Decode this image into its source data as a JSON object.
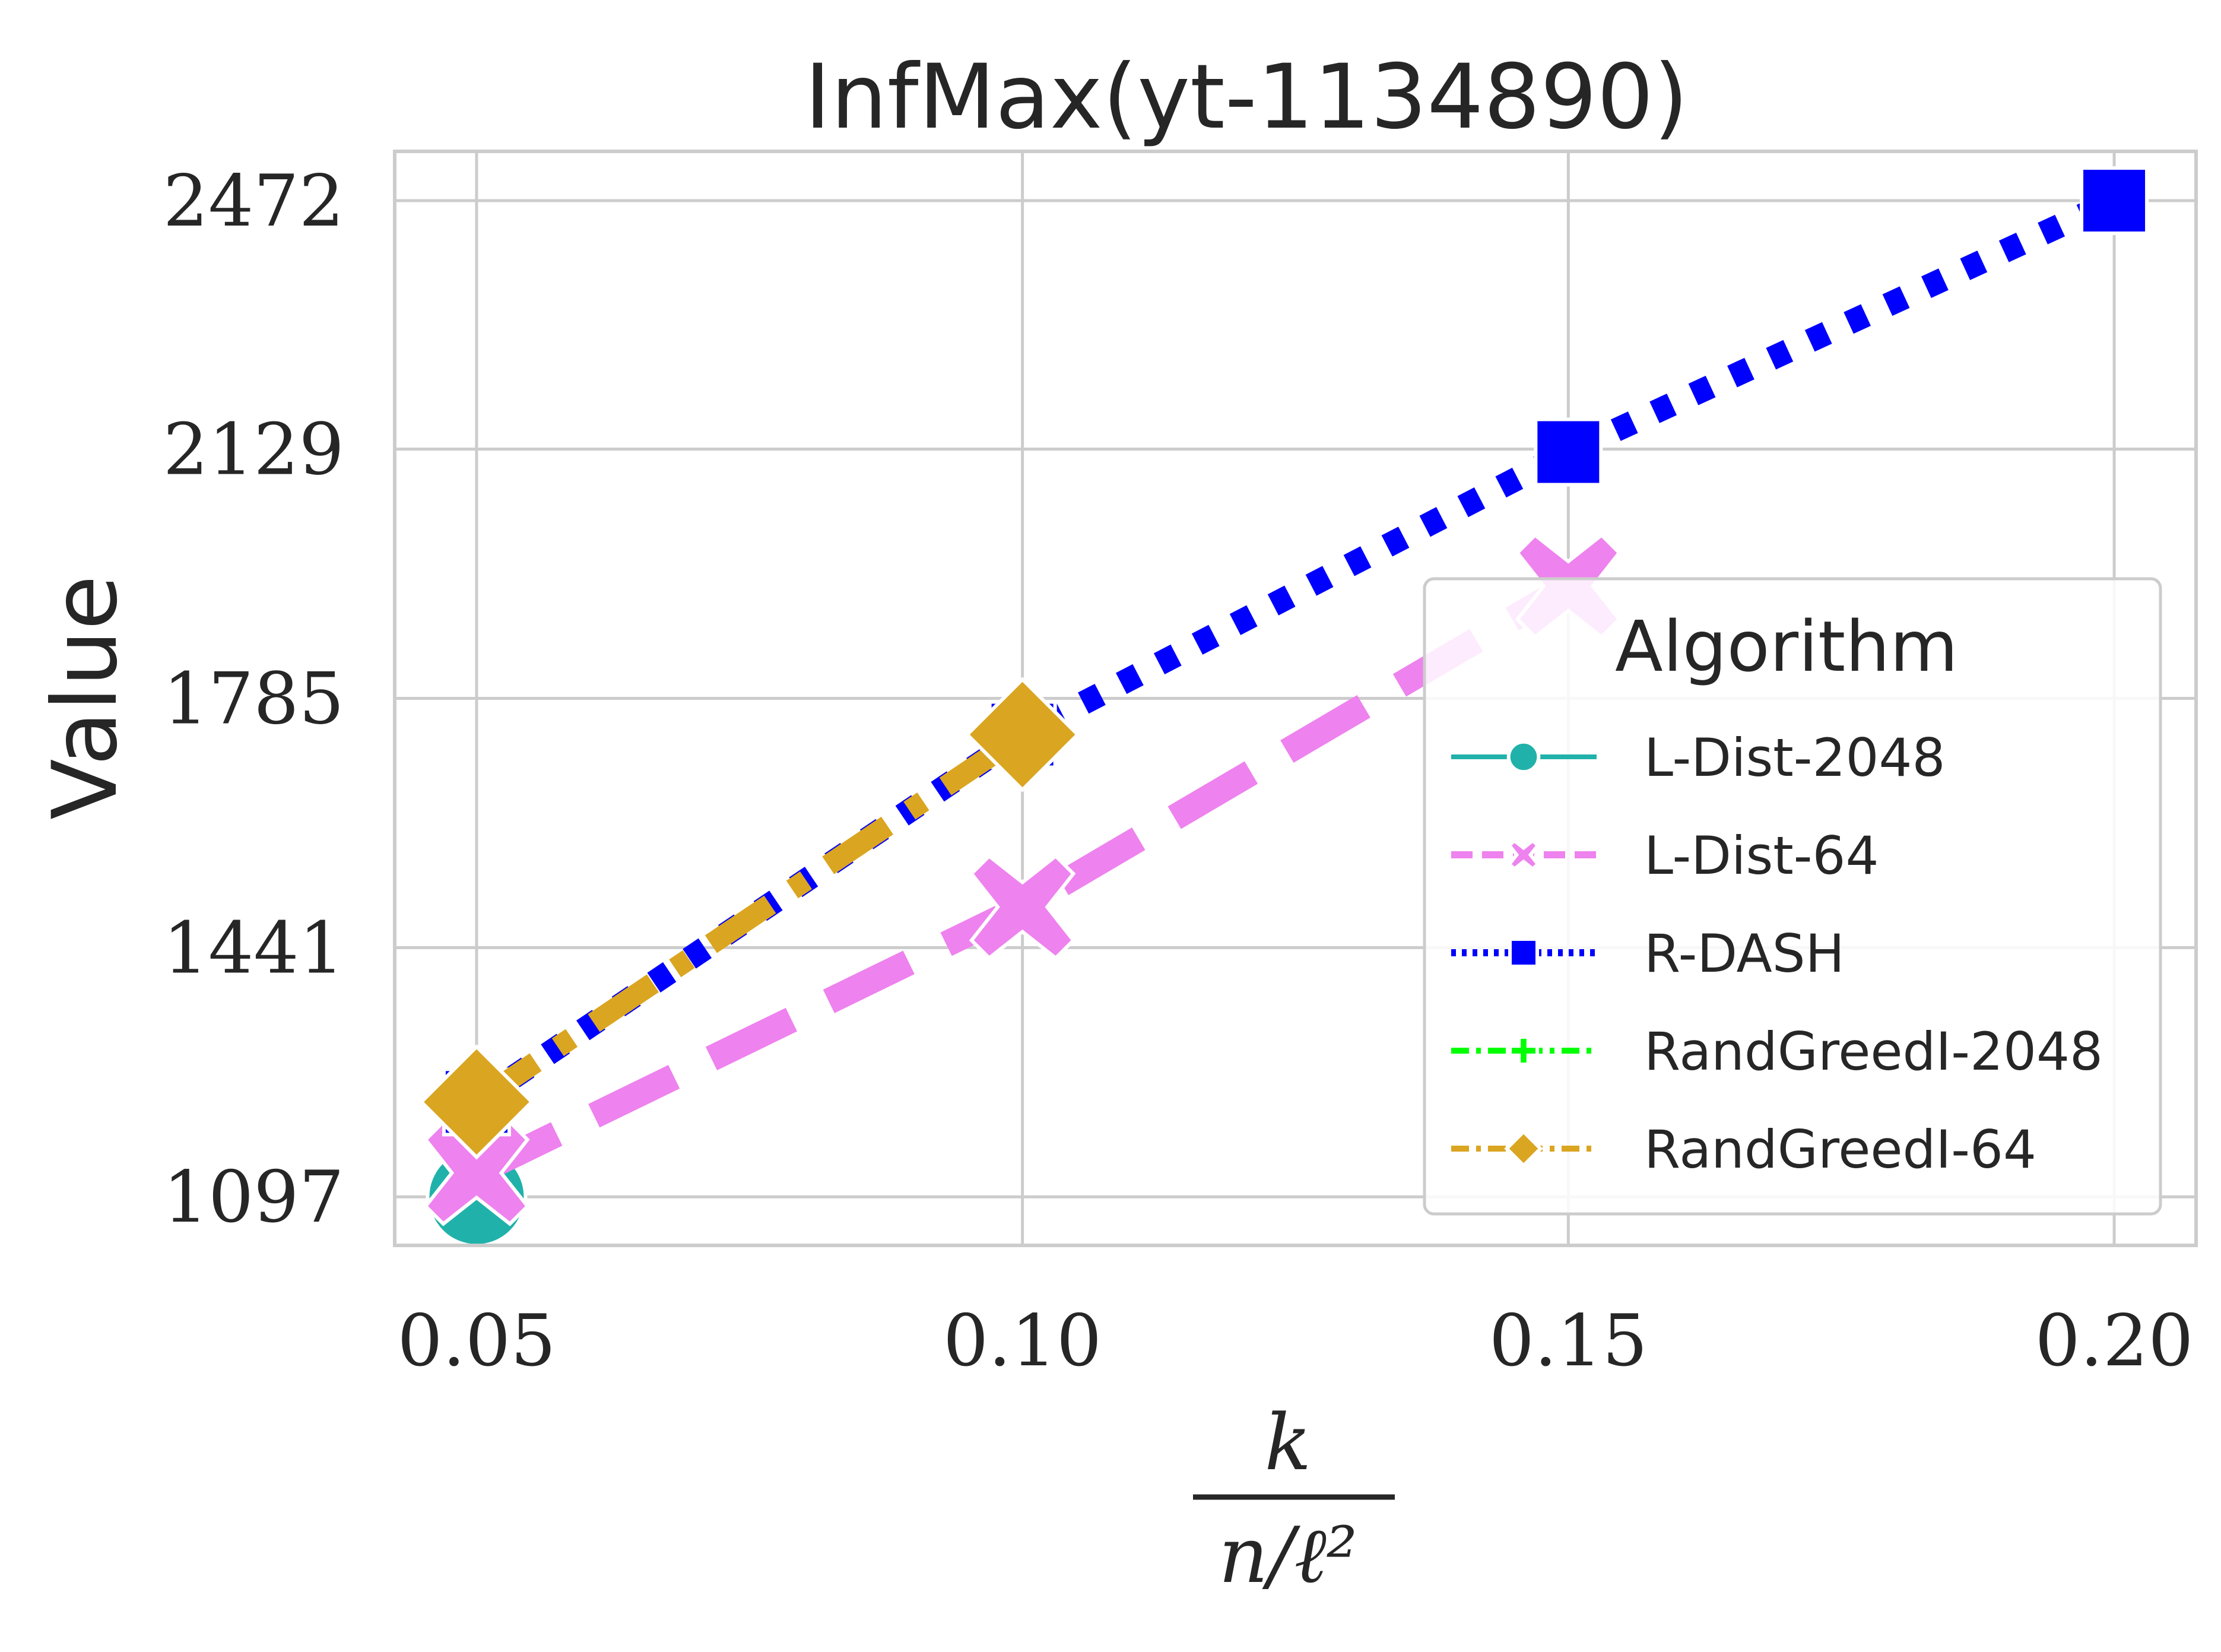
{
  "chart_data": {
    "type": "line",
    "title": "InfMax(yt-1134890)",
    "ylabel": "Value",
    "xlabel": {
      "numerator": "k",
      "denominator": "n/ℓ²"
    },
    "xlim": [
      0.0425,
      0.2075
    ],
    "ylim": [
      1030,
      2540
    ],
    "x_ticks": [
      0.05,
      0.1,
      0.15,
      0.2
    ],
    "x_tick_labels": [
      "0.05",
      "0.10",
      "0.15",
      "0.20"
    ],
    "y_ticks": [
      1097,
      1441,
      1785,
      2129,
      2472
    ],
    "y_tick_labels": [
      "1097",
      "1441",
      "1785",
      "2129",
      "2472"
    ],
    "grid": true,
    "legend": {
      "title": "Algorithm",
      "placement": "right"
    },
    "series": [
      {
        "name": "L-Dist-2048",
        "color": "#20b2aa",
        "marker": "circle",
        "dash": "solid",
        "x": [
          0.05
        ],
        "y": [
          1097
        ]
      },
      {
        "name": "L-Dist-64",
        "color": "#ee82ee",
        "marker": "x",
        "dash": "dashed",
        "x": [
          0.05,
          0.1,
          0.15
        ],
        "y": [
          1130,
          1497,
          1940
        ]
      },
      {
        "name": "R-DASH",
        "color": "#0000ff",
        "marker": "square",
        "dash": "dotted",
        "x": [
          0.05,
          0.1,
          0.15,
          0.2
        ],
        "y": [
          1228,
          1735,
          2125,
          2472
        ]
      },
      {
        "name": "RandGreedI-2048",
        "color": "#00ff00",
        "marker": "plus",
        "dash": "dashdot",
        "x": [
          0.05
        ],
        "y": [
          1228
        ]
      },
      {
        "name": "RandGreedI-64",
        "color": "#daa520",
        "marker": "diamond",
        "dash": "dashdot",
        "x": [
          0.05,
          0.1
        ],
        "y": [
          1228,
          1735
        ]
      }
    ]
  }
}
